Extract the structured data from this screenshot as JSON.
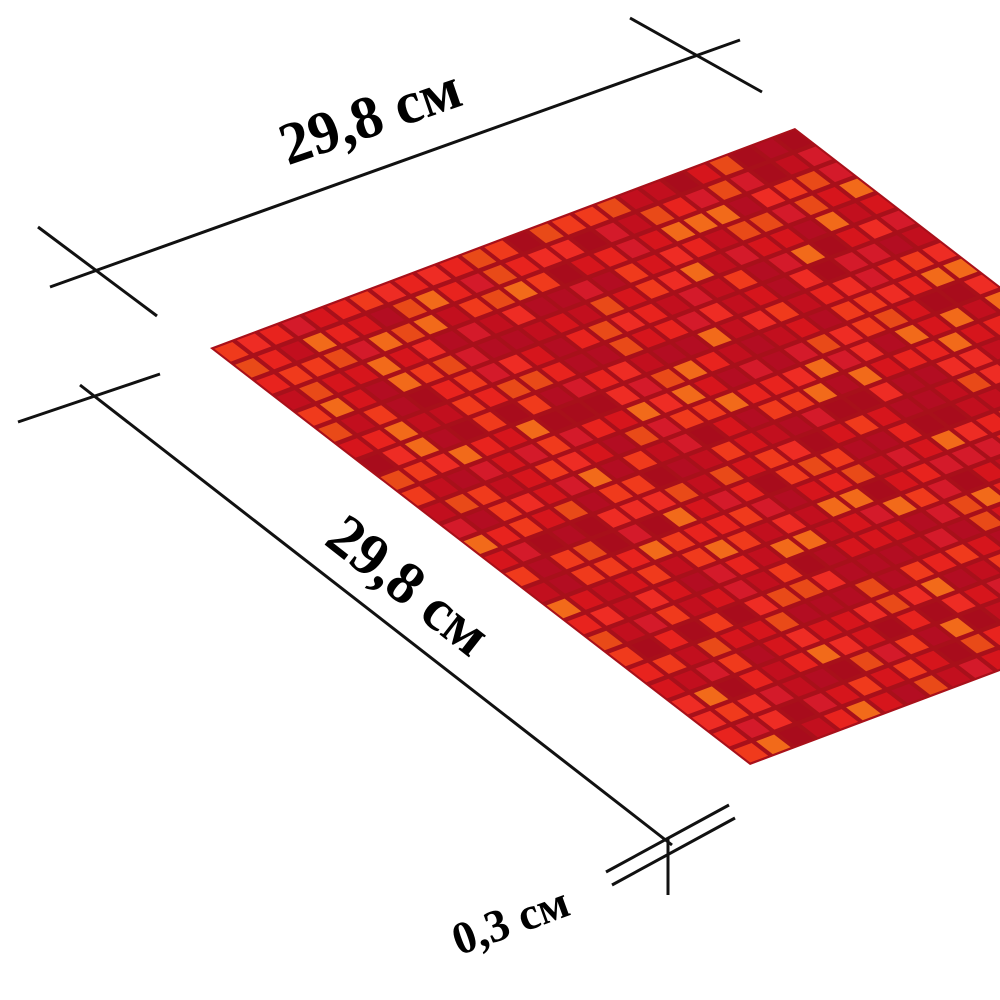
{
  "labels": {
    "width": "29,8 см",
    "length": "29,8 см",
    "thickness": "0,3 см"
  }
}
